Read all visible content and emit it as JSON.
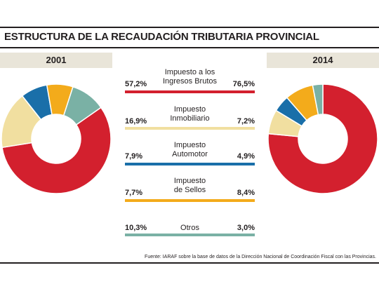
{
  "title": "ESTRUCTURA DE LA RECAUDACIÓN TRIBUTARIA PROVINCIAL",
  "source": "Fuente: IARAF sobre la base de datos de la Dirección Nacional de Coordinación Fiscal con las Provincias.",
  "colors": {
    "ingresos_brutos": "#d3202e",
    "inmobiliario": "#f1dfa0",
    "automotor": "#1a6fa9",
    "sellos": "#f3ab1b",
    "otros": "#7ab1a5",
    "year_bar": "#e9e5d9"
  },
  "categories": [
    {
      "name_line1": "Impuesto a los",
      "name_line2": "Ingresos Brutos",
      "pct_2001": "57,2%",
      "pct_2014": "76,5%",
      "color": "#d3202e"
    },
    {
      "name_line1": "Impuesto",
      "name_line2": "Inmobiliario",
      "pct_2001": "16,9%",
      "pct_2014": "7,2%",
      "color": "#f1dfa0"
    },
    {
      "name_line1": "Impuesto",
      "name_line2": "Automotor",
      "pct_2001": "7,9%",
      "pct_2014": "4,9%",
      "color": "#1a6fa9"
    },
    {
      "name_line1": "Impuesto",
      "name_line2": "de Sellos",
      "pct_2001": "7,7%",
      "pct_2014": "8,4%",
      "color": "#f3ab1b"
    },
    {
      "name_line1": "",
      "name_line2": "Otros",
      "pct_2001": "10,3%",
      "pct_2014": "3,0%",
      "color": "#7ab1a5"
    }
  ],
  "chart_data": [
    {
      "type": "pie",
      "title": "2001",
      "labels": [
        "Impuesto a los Ingresos Brutos",
        "Impuesto Inmobiliario",
        "Impuesto Automotor",
        "Impuesto de Sellos",
        "Otros"
      ],
      "values": [
        57.2,
        16.9,
        7.9,
        7.7,
        10.3
      ],
      "colors": [
        "#d3202e",
        "#f1dfa0",
        "#1a6fa9",
        "#f3ab1b",
        "#7ab1a5"
      ],
      "donut": true
    },
    {
      "type": "pie",
      "title": "2014",
      "labels": [
        "Impuesto a los Ingresos Brutos",
        "Impuesto Inmobiliario",
        "Impuesto Automotor",
        "Impuesto de Sellos",
        "Otros"
      ],
      "values": [
        76.5,
        7.2,
        4.9,
        8.4,
        3.0
      ],
      "colors": [
        "#d3202e",
        "#f1dfa0",
        "#1a6fa9",
        "#f3ab1b",
        "#7ab1a5"
      ],
      "donut": true
    }
  ]
}
